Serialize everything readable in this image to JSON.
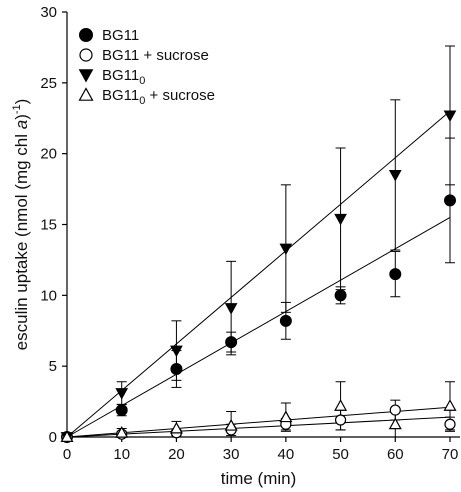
{
  "chart_data": {
    "type": "scatter",
    "xlabel": "time (min)",
    "ylabel": "esculin uptake (nmol (mg chl a)⁻¹)",
    "ylabel_parts": {
      "pre": "esculin uptake (nmol (mg chl ",
      "italic": "a",
      "post": ")",
      "sup": "-1",
      "post2": ")"
    },
    "xlim": [
      0,
      70
    ],
    "ylim": [
      0,
      30
    ],
    "xticks": [
      0,
      10,
      20,
      30,
      40,
      50,
      60,
      70
    ],
    "yticks": [
      0,
      5,
      10,
      15,
      20,
      25,
      30
    ],
    "legend_position": "top-left",
    "grid": false,
    "series": [
      {
        "name": "BG11",
        "legend": {
          "base": "BG11",
          "sub": "",
          "suffix": ""
        },
        "marker": "filled-circle",
        "x": [
          0,
          10,
          20,
          30,
          40,
          50,
          60,
          70
        ],
        "y": [
          0,
          1.9,
          4.8,
          6.7,
          8.2,
          10.0,
          11.5,
          16.7
        ],
        "err": [
          0,
          0.4,
          1.3,
          0.7,
          1.3,
          0.6,
          1.6,
          4.4
        ],
        "fit_end": [
          70,
          15.5
        ]
      },
      {
        "name": "BG11 + sucrose",
        "legend": {
          "base": "BG11",
          "sub": "",
          "suffix": " + sucrose"
        },
        "marker": "open-circle",
        "x": [
          0,
          10,
          20,
          30,
          40,
          50,
          60,
          70
        ],
        "y": [
          0,
          0.2,
          0.3,
          0.5,
          0.9,
          1.2,
          1.9,
          0.9
        ],
        "err": [
          0,
          0.2,
          0.2,
          0.4,
          0.4,
          0.7,
          0.7,
          0.5
        ],
        "fit_end": [
          70,
          1.4
        ]
      },
      {
        "name": "BG11₀",
        "legend": {
          "base": "BG11",
          "sub": "0",
          "suffix": ""
        },
        "marker": "filled-triangle-down",
        "x": [
          0,
          10,
          20,
          30,
          40,
          50,
          60,
          70
        ],
        "y": [
          0,
          3.1,
          6.1,
          9.1,
          13.3,
          15.4,
          18.5,
          22.7
        ],
        "err": [
          0,
          0.8,
          2.1,
          3.3,
          4.5,
          5.0,
          5.3,
          4.9
        ],
        "fit_end": [
          70,
          23.0
        ]
      },
      {
        "name": "BG11₀ + sucrose",
        "legend": {
          "base": "BG11",
          "sub": "0",
          "suffix": " + sucrose"
        },
        "marker": "open-triangle-up",
        "x": [
          0,
          10,
          20,
          30,
          40,
          50,
          60,
          70
        ],
        "y": [
          0,
          0.3,
          0.6,
          0.8,
          1.4,
          2.2,
          0.9,
          2.2
        ],
        "err": [
          0,
          0.3,
          0.5,
          1.0,
          1.0,
          1.7,
          1.0,
          1.7
        ],
        "fit_end": [
          70,
          2.1
        ]
      }
    ]
  }
}
